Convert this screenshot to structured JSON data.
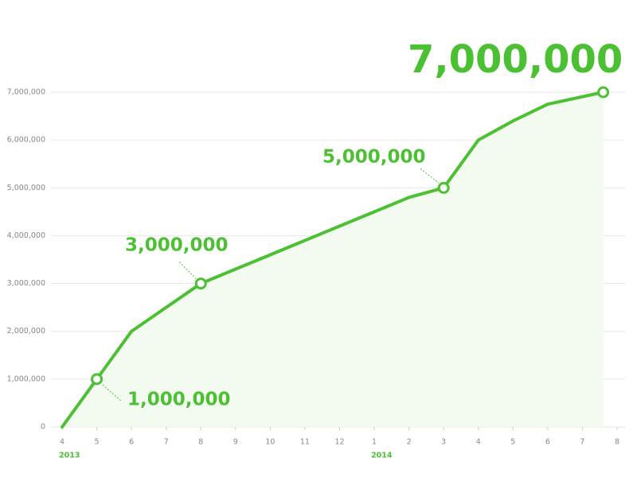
{
  "chart_data": {
    "type": "line",
    "x": [
      0,
      1,
      2,
      3,
      4,
      5,
      6,
      7,
      8,
      9,
      10,
      11,
      12,
      13,
      14,
      15.6
    ],
    "values": [
      0,
      1000000,
      2000000,
      2500000,
      3000000,
      3300000,
      3600000,
      3900000,
      4200000,
      4500000,
      4800000,
      5000000,
      6000000,
      6400000,
      6750000,
      7000000
    ],
    "color": "#4cc033",
    "area_color": "#f3fbf1",
    "grid": true,
    "xlim": [
      0,
      16
    ],
    "xticks": [
      {
        "value": 0,
        "label": "4"
      },
      {
        "value": 1,
        "label": "5"
      },
      {
        "value": 2,
        "label": "6"
      },
      {
        "value": 3,
        "label": "7"
      },
      {
        "value": 4,
        "label": "8"
      },
      {
        "value": 5,
        "label": "9"
      },
      {
        "value": 6,
        "label": "10"
      },
      {
        "value": 7,
        "label": "11"
      },
      {
        "value": 8,
        "label": "12"
      },
      {
        "value": 9,
        "label": "1"
      },
      {
        "value": 10,
        "label": "2"
      },
      {
        "value": 11,
        "label": "3"
      },
      {
        "value": 12,
        "label": "4"
      },
      {
        "value": 13,
        "label": "5"
      },
      {
        "value": 14,
        "label": "6"
      },
      {
        "value": 15,
        "label": "7"
      },
      {
        "value": 16,
        "label": "8"
      }
    ],
    "year_labels": [
      {
        "value": 0,
        "label": "2013"
      },
      {
        "value": 9,
        "label": "2014"
      }
    ],
    "ylim": [
      0,
      7000000
    ],
    "yticks": [
      0,
      {
        "value": 1000000,
        "label": "1,000,000"
      },
      {
        "value": 2000000,
        "label": "2,000,000"
      },
      {
        "value": 3000000,
        "label": "3,000,000"
      },
      {
        "value": 4000000,
        "label": "4,000,000"
      },
      {
        "value": 5000000,
        "label": "5,000,000"
      },
      {
        "value": 6000000,
        "label": "6,000,000"
      },
      {
        "value": 7000000,
        "label": "7,000,000"
      }
    ],
    "annotations": [
      {
        "x": 1,
        "value": 1000000,
        "label": "1,000,000"
      },
      {
        "x": 4,
        "value": 3000000,
        "label": "3,000,000"
      },
      {
        "x": 11,
        "value": 5000000,
        "label": "5,000,000"
      },
      {
        "x": 15.6,
        "value": 7000000,
        "label": "7,000,000"
      }
    ]
  }
}
